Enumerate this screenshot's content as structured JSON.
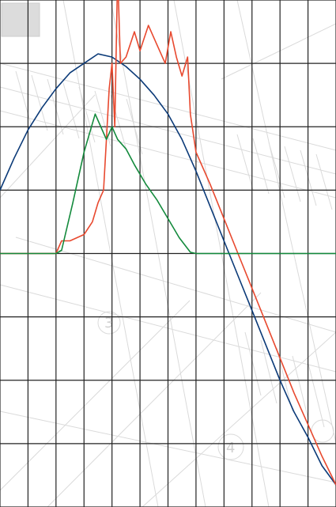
{
  "colors": {
    "background": "#ffffff",
    "grid": "#222222",
    "watermark": "#d6d6d6",
    "blue": "#0b3a78",
    "red": "#e8492f",
    "green": "#138a3c"
  },
  "chart_data": {
    "type": "line",
    "grid": true,
    "xlim": [
      0,
      12
    ],
    "ylim": [
      -4,
      4
    ],
    "x_divisions": 12,
    "y_divisions": 8,
    "title": "",
    "xlabel": "",
    "ylabel": "",
    "series": [
      {
        "color": "#0b3a78",
        "x": [
          0,
          0.5,
          1,
          1.5,
          2,
          2.5,
          3,
          3.5,
          4,
          4.5,
          5,
          5.5,
          6,
          6.5,
          7,
          7.5,
          8,
          8.5,
          9,
          9.5,
          10,
          10.5,
          11,
          11.5,
          12
        ],
        "y": [
          1.0,
          1.5,
          1.95,
          2.3,
          2.6,
          2.85,
          3.0,
          3.15,
          3.1,
          2.95,
          2.75,
          2.5,
          2.2,
          1.8,
          1.3,
          0.75,
          0.2,
          -0.35,
          -0.9,
          -1.45,
          -2.0,
          -2.5,
          -2.9,
          -3.35,
          -3.65
        ]
      },
      {
        "color": "#e8492f",
        "x": [
          0,
          0.5,
          1,
          2,
          2.2,
          2.5,
          3,
          3.3,
          3.5,
          3.7,
          3.8,
          3.9,
          4.0,
          4.1,
          4.2,
          4.3,
          4.5,
          4.8,
          5.0,
          5.3,
          5.6,
          5.9,
          6.1,
          6.3,
          6.5,
          6.7,
          6.8,
          7.0,
          7.5,
          8.0,
          8.5,
          9.0,
          9.5,
          10.0,
          10.5,
          11.0,
          11.5,
          12.0
        ],
        "y": [
          0,
          0,
          0,
          0,
          0.2,
          0.2,
          0.3,
          0.5,
          0.8,
          1.0,
          1.8,
          2.6,
          3.0,
          2.0,
          4.45,
          3.0,
          3.1,
          3.5,
          3.2,
          3.6,
          3.3,
          3.0,
          3.5,
          3.1,
          2.8,
          3.1,
          2.2,
          1.6,
          1.1,
          0.55,
          0.0,
          -0.55,
          -1.1,
          -1.65,
          -2.2,
          -2.7,
          -3.2,
          -3.65
        ]
      },
      {
        "color": "#138a3c",
        "x": [
          0,
          1,
          2,
          2.2,
          2.6,
          3.0,
          3.4,
          3.8,
          4.0,
          4.1,
          4.2,
          4.5,
          4.8,
          5.2,
          5.6,
          6.0,
          6.4,
          6.8,
          7.0,
          8,
          9,
          10,
          11,
          12
        ],
        "y": [
          0,
          0,
          0,
          0.05,
          0.8,
          1.6,
          2.2,
          1.8,
          2.0,
          1.9,
          1.8,
          1.65,
          1.4,
          1.1,
          0.85,
          0.55,
          0.25,
          0.02,
          0,
          0,
          0,
          0,
          0,
          0
        ]
      }
    ]
  },
  "watermark_marks": [
    "3",
    "4"
  ]
}
